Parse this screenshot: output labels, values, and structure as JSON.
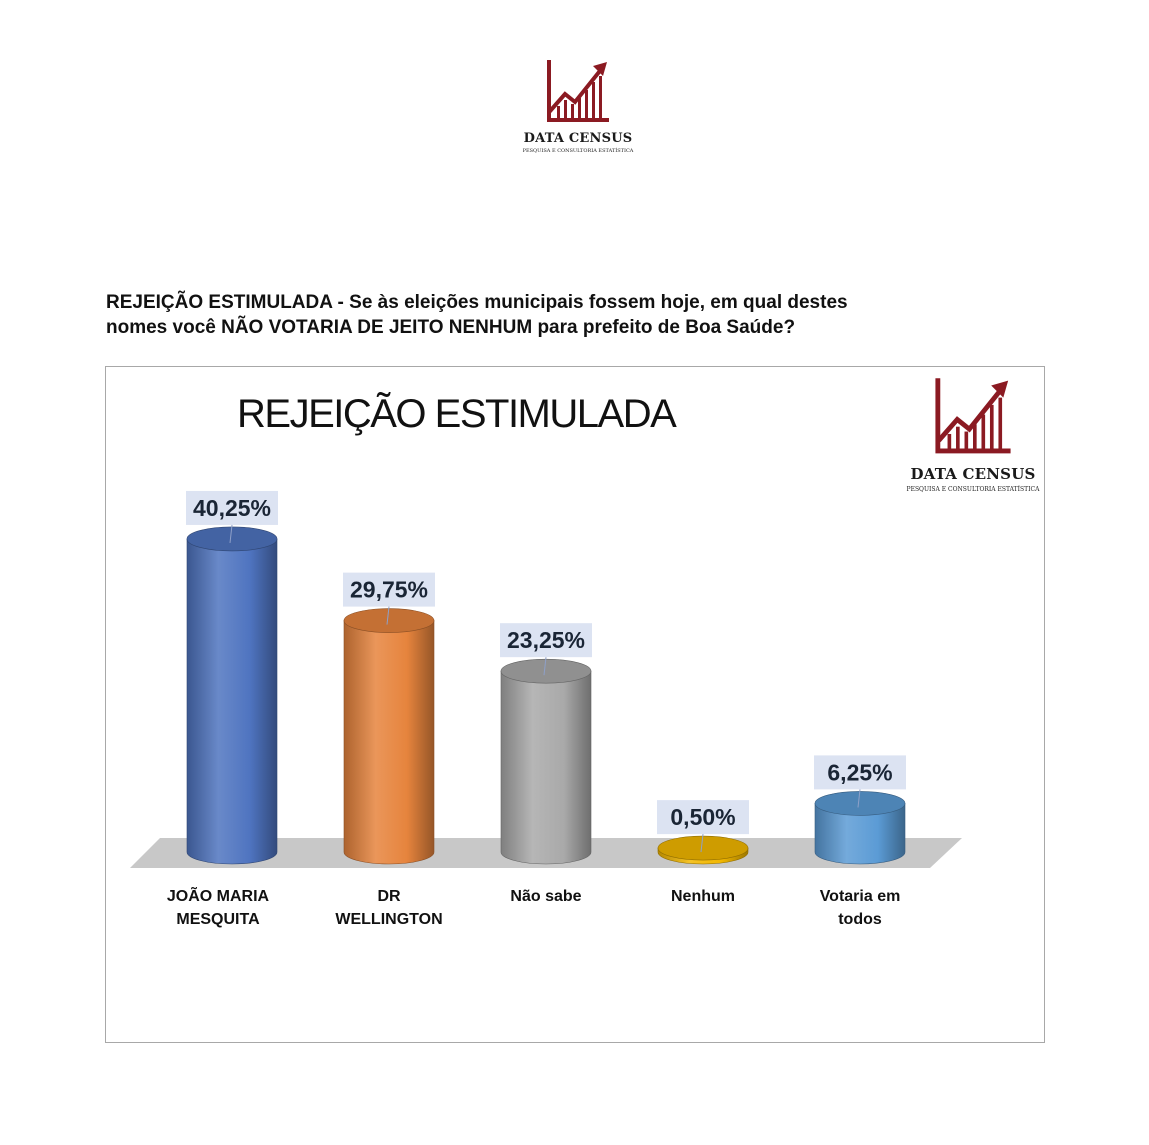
{
  "header": {
    "logo_brand": "DATA CENSUS",
    "logo_tagline": "Pesquisa e Consultoria Estatística",
    "logo_icon": "rising-bar-chart-arrow-icon",
    "brand_color": "#8b1a22"
  },
  "question": {
    "line1": "REJEIÇÃO ESTIMULADA - Se às eleições municipais fossem hoje, em qual destes",
    "line2": "nomes você NÃO VOTARIA DE JEITO NENHUM para prefeito de Boa Saúde?"
  },
  "chart_data": {
    "type": "bar",
    "style": "3d-cylinder",
    "title": "REJEIÇÃO ESTIMULADA",
    "categories": [
      "JOÃO MARIA\nMESQUITA",
      "DR\nWELLINGTON",
      "Não sabe",
      "Nenhum",
      "Votaria em\ntodos"
    ],
    "values": [
      40.25,
      29.75,
      23.25,
      0.5,
      6.25
    ],
    "data_labels": [
      "40,25%",
      "29,75%",
      "23,25%",
      "0,50%",
      "6,25%"
    ],
    "colors": [
      "#4f74c0",
      "#e6843d",
      "#a9a9a9",
      "#f2b700",
      "#5b9bd5"
    ],
    "ylim": [
      0,
      45
    ],
    "xlabel": "",
    "ylabel": "",
    "grid": false,
    "legend": "none"
  }
}
